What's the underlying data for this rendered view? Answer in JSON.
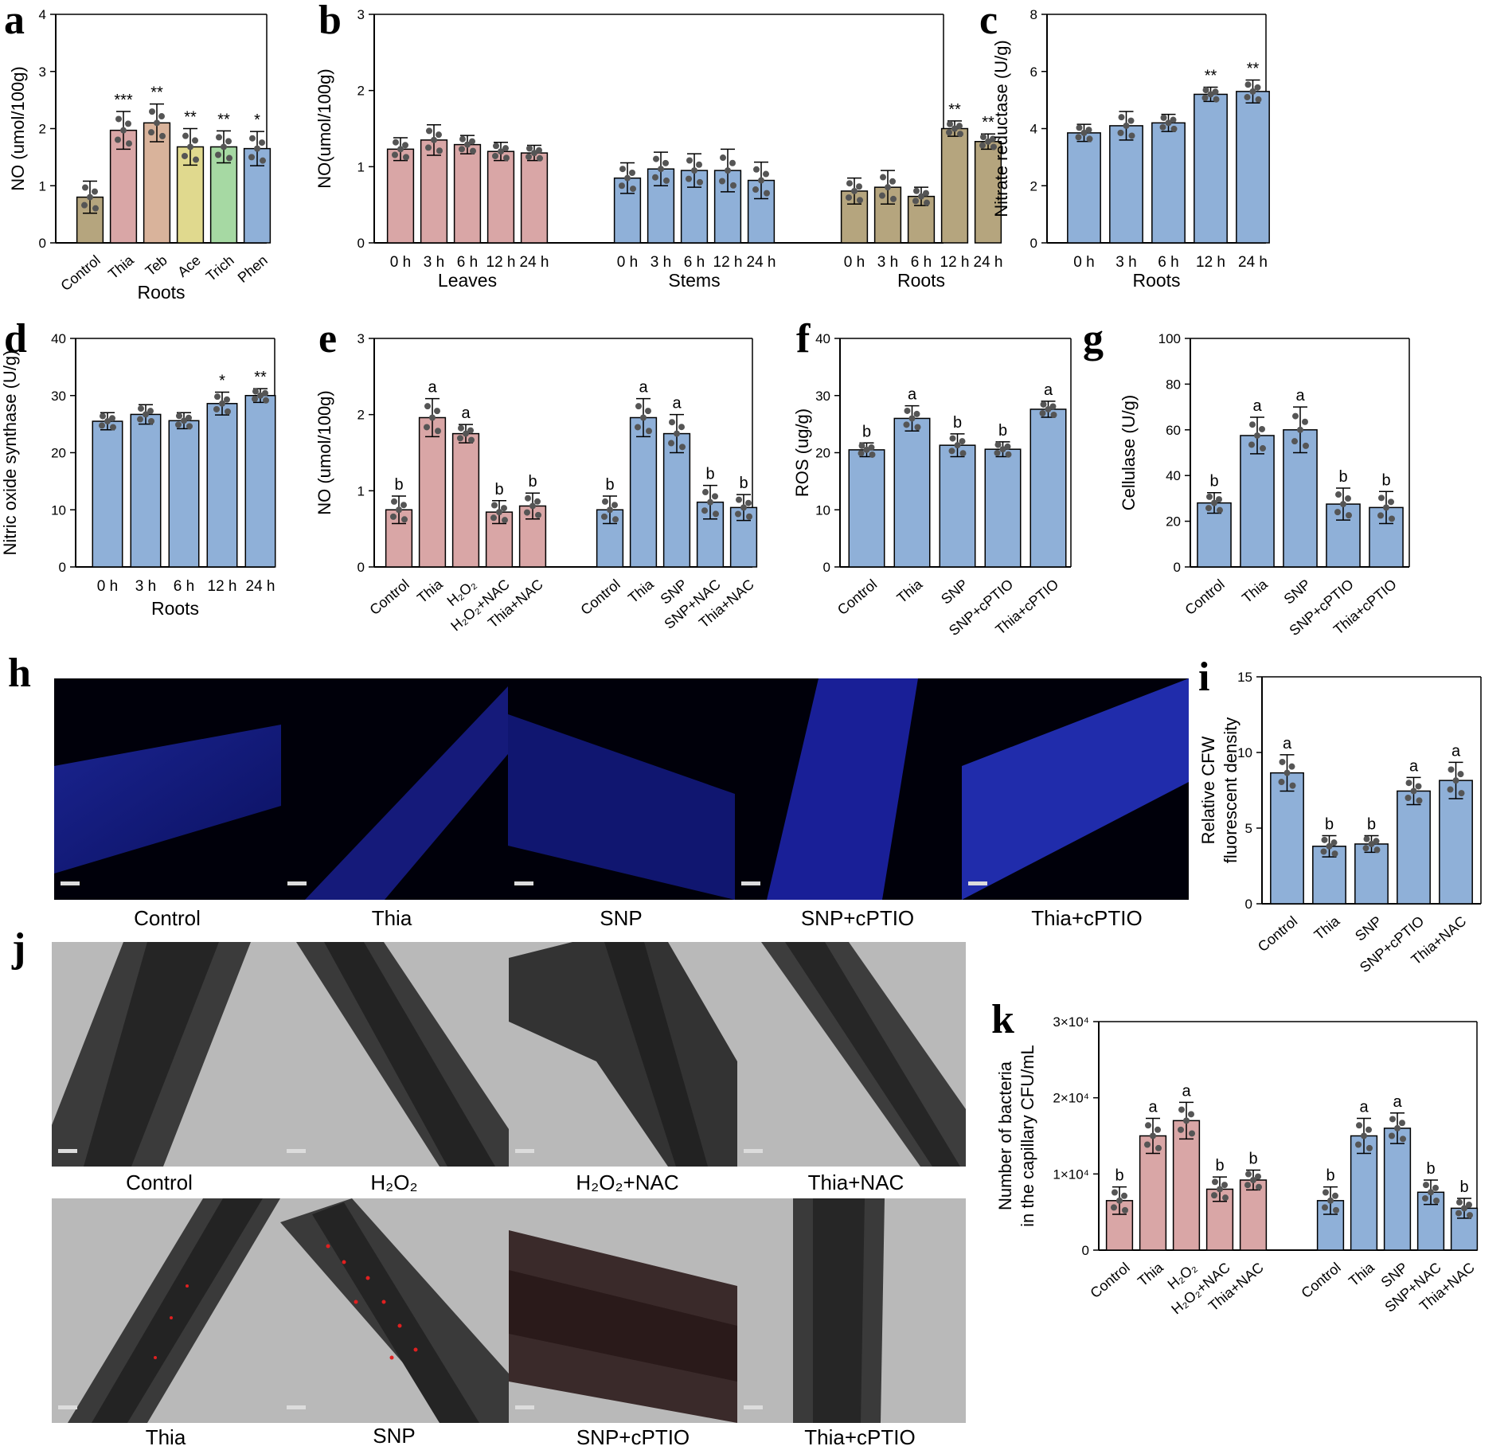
{
  "panel_letters": [
    "a",
    "b",
    "c",
    "d",
    "e",
    "f",
    "g",
    "h",
    "i",
    "j",
    "k"
  ],
  "colors": {
    "pink": "#d9a6a6",
    "tan": "#d9b39b",
    "olive": "#e0d98e",
    "green": "#a6d9a3",
    "blue": "#8fb0d8",
    "khaki": "#b5a57e",
    "dot": "#555555"
  },
  "chart_data": [
    {
      "id": "a",
      "type": "bar",
      "xlabel": "Roots",
      "ylabel": "NO (umol/100g)",
      "ylim": [
        0,
        4
      ],
      "yticks": [
        "0",
        "1",
        "2",
        "3",
        "4"
      ],
      "categories": [
        "Control",
        "Thia",
        "Teb",
        "Ace",
        "Trich",
        "Phen"
      ],
      "values": [
        0.8,
        1.97,
        2.1,
        1.68,
        1.68,
        1.65
      ],
      "errors": [
        0.28,
        0.33,
        0.33,
        0.32,
        0.28,
        0.3
      ],
      "annotations": [
        "",
        "***",
        "**",
        "**",
        "**",
        "*"
      ],
      "colors": [
        "khaki",
        "pink",
        "tan",
        "olive",
        "green",
        "blue"
      ]
    },
    {
      "id": "b",
      "type": "bar",
      "xlabel": "",
      "ylabel": "NO(umol/100g)",
      "ylim": [
        0,
        3
      ],
      "yticks": [
        "0",
        "1",
        "2",
        "3"
      ],
      "groups": [
        {
          "name": "Leaves",
          "categories": [
            "0 h",
            "3 h",
            "6 h",
            "12 h",
            "24 h"
          ],
          "values": [
            1.23,
            1.35,
            1.29,
            1.2,
            1.18
          ],
          "errors": [
            0.15,
            0.2,
            0.12,
            0.12,
            0.1
          ],
          "annotations": [
            "",
            "",
            "",
            "",
            ""
          ],
          "color": "pink"
        },
        {
          "name": "Stems",
          "categories": [
            "0 h",
            "3 h",
            "6 h",
            "12 h",
            "24 h"
          ],
          "values": [
            0.85,
            0.97,
            0.95,
            0.95,
            0.82
          ],
          "errors": [
            0.2,
            0.22,
            0.22,
            0.28,
            0.24
          ],
          "annotations": [
            "",
            "",
            "",
            "",
            ""
          ],
          "color": "blue"
        },
        {
          "name": "Roots",
          "categories": [
            "0 h",
            "3 h",
            "6 h",
            "12 h",
            "24 h"
          ],
          "values": [
            0.68,
            0.73,
            0.61,
            1.5,
            1.33
          ],
          "errors": [
            0.17,
            0.22,
            0.12,
            0.1,
            0.1
          ],
          "annotations": [
            "",
            "",
            "",
            "**",
            "**"
          ],
          "color": "khaki"
        }
      ]
    },
    {
      "id": "c",
      "type": "bar",
      "xlabel": "Roots",
      "ylabel": "Nitrate reductase (U/g)",
      "ylim": [
        0,
        8
      ],
      "yticks": [
        "0",
        "2",
        "4",
        "6",
        "8"
      ],
      "categories": [
        "0 h",
        "3 h",
        "6 h",
        "12 h",
        "24 h"
      ],
      "values": [
        3.85,
        4.1,
        4.2,
        5.2,
        5.3
      ],
      "errors": [
        0.3,
        0.5,
        0.3,
        0.25,
        0.4
      ],
      "annotations": [
        "",
        "",
        "",
        "**",
        "**"
      ],
      "colors": [
        "blue",
        "blue",
        "blue",
        "blue",
        "blue"
      ]
    },
    {
      "id": "d",
      "type": "bar",
      "xlabel": "Roots",
      "ylabel": "Nitric oxide synthase (U/g)",
      "ylim": [
        0,
        40
      ],
      "yticks": [
        "0",
        "10",
        "20",
        "30",
        "40"
      ],
      "categories": [
        "0 h",
        "3 h",
        "6 h",
        "12 h",
        "24 h"
      ],
      "values": [
        25.5,
        26.7,
        25.6,
        28.6,
        30
      ],
      "errors": [
        1.5,
        1.7,
        1.4,
        2,
        1.2
      ],
      "annotations": [
        "",
        "",
        "",
        "*",
        "**"
      ],
      "colors": [
        "blue",
        "blue",
        "blue",
        "blue",
        "blue"
      ]
    },
    {
      "id": "e",
      "type": "bar",
      "xlabel": "",
      "ylabel": "NO (umol/100g)",
      "ylim": [
        0,
        3
      ],
      "yticks": [
        "0",
        "1",
        "2",
        "3"
      ],
      "groups": [
        {
          "name": "",
          "categories": [
            "Control",
            "Thia",
            "H₂O₂",
            "H₂O₂+NAC",
            "Thia+NAC"
          ],
          "values": [
            0.75,
            1.96,
            1.75,
            0.72,
            0.8
          ],
          "errors": [
            0.18,
            0.25,
            0.12,
            0.15,
            0.17
          ],
          "annotations": [
            "b",
            "a",
            "a",
            "b",
            "b"
          ],
          "color": "pink"
        },
        {
          "name": "",
          "categories": [
            "Control",
            "Thia",
            "SNP",
            "SNP+NAC",
            "Thia+NAC"
          ],
          "values": [
            0.75,
            1.96,
            1.75,
            0.85,
            0.78
          ],
          "errors": [
            0.18,
            0.25,
            0.25,
            0.22,
            0.17
          ],
          "annotations": [
            "b",
            "a",
            "a",
            "b",
            "b"
          ],
          "color": "blue"
        }
      ]
    },
    {
      "id": "f",
      "type": "bar",
      "xlabel": "",
      "ylabel": "ROS (ug/g)",
      "ylim": [
        0,
        40
      ],
      "yticks": [
        "0",
        "10",
        "20",
        "30",
        "40"
      ],
      "categories": [
        "Control",
        "Thia",
        "SNP",
        "SNP+cPTIO",
        "Thia+cPTIO"
      ],
      "values": [
        20.5,
        26,
        21.3,
        20.6,
        27.6
      ],
      "errors": [
        1.2,
        2.2,
        2,
        1.3,
        1.4
      ],
      "annotations": [
        "b",
        "a",
        "b",
        "b",
        "a"
      ],
      "colors": [
        "blue",
        "blue",
        "blue",
        "blue",
        "blue"
      ]
    },
    {
      "id": "g",
      "type": "bar",
      "xlabel": "",
      "ylabel": "Cellulase (U/g)",
      "ylim": [
        0,
        100
      ],
      "yticks": [
        "0",
        "20",
        "40",
        "60",
        "80",
        "100"
      ],
      "categories": [
        "Control",
        "Thia",
        "SNP",
        "SNP+cPTIO",
        "Thia+cPTIO"
      ],
      "values": [
        28,
        57.5,
        60,
        27.5,
        26
      ],
      "errors": [
        4.5,
        8,
        10,
        7,
        7
      ],
      "annotations": [
        "b",
        "a",
        "a",
        "b",
        "b"
      ],
      "colors": [
        "blue",
        "blue",
        "blue",
        "blue",
        "blue"
      ]
    },
    {
      "id": "i",
      "type": "bar",
      "xlabel": "",
      "ylabel": "Relative CFW fluorescent density",
      "ylim": [
        0,
        15
      ],
      "yticks": [
        "0",
        "5",
        "10",
        "15"
      ],
      "categories": [
        "Control",
        "Thia",
        "SNP",
        "SNP+cPTIO",
        "Thia+NAC"
      ],
      "values": [
        8.65,
        3.8,
        3.95,
        7.45,
        8.15
      ],
      "errors": [
        1.2,
        0.7,
        0.55,
        0.9,
        1.2
      ],
      "annotations": [
        "a",
        "b",
        "b",
        "a",
        "a"
      ],
      "colors": [
        "blue",
        "blue",
        "blue",
        "blue",
        "blue"
      ]
    },
    {
      "id": "k",
      "type": "bar",
      "xlabel": "",
      "ylabel": "Number of bacteria in the capillary CFU/mL",
      "ylim": [
        0,
        30000
      ],
      "yticks": [
        "0",
        "1×10⁴",
        "2×10⁴",
        "3×10⁴"
      ],
      "groups": [
        {
          "name": "",
          "categories": [
            "Control",
            "Thia",
            "H₂O₂",
            "H₂O₂+NAC",
            "Thia+NAC"
          ],
          "values": [
            6500,
            15000,
            17000,
            8000,
            9200
          ],
          "errors": [
            1800,
            2300,
            2400,
            1600,
            1300
          ],
          "annotations": [
            "b",
            "a",
            "a",
            "b",
            "b"
          ],
          "color": "pink"
        },
        {
          "name": "",
          "categories": [
            "Control",
            "Thia",
            "SNP",
            "SNP+NAC",
            "Thia+NAC"
          ],
          "values": [
            6500,
            15000,
            16000,
            7600,
            5500
          ],
          "errors": [
            1800,
            2300,
            2000,
            1600,
            1300
          ],
          "annotations": [
            "b",
            "a",
            "a",
            "b",
            "b"
          ],
          "color": "blue"
        }
      ]
    }
  ],
  "panel_h": {
    "captions": [
      "Control",
      "Thia",
      "SNP",
      "SNP+cPTIO",
      "Thia+cPTIO"
    ]
  },
  "panel_j": {
    "captions_top": [
      "Control",
      "H₂O₂",
      "H₂O₂+NAC",
      "Thia+NAC"
    ],
    "captions_bottom": [
      "Thia",
      "SNP",
      "SNP+cPTIO",
      "Thia+cPTIO"
    ]
  }
}
